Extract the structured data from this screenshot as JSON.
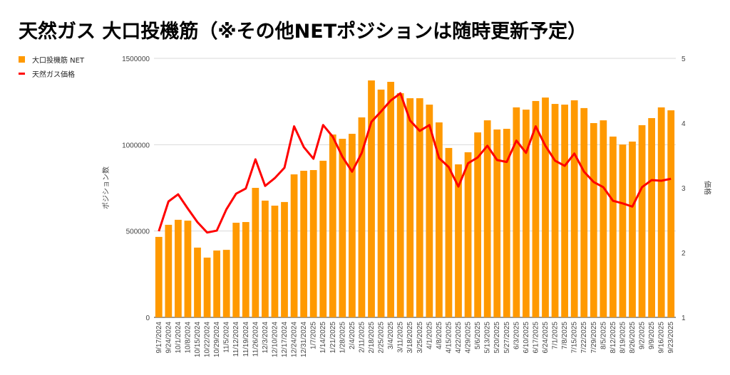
{
  "chart_data": {
    "type": "bar+line",
    "title": "天然ガス 大口投機筋（※その他NETポジションは随時更新予定）",
    "ylabel": "ポジション数",
    "y2label": "価格",
    "ylim": [
      0,
      1500000
    ],
    "y2lim": [
      1,
      5
    ],
    "yticks": [
      "0",
      "500000",
      "1000000",
      "1500000"
    ],
    "y2ticks": [
      "1",
      "2",
      "3",
      "4",
      "5"
    ],
    "grid": true,
    "legend_position": "top-left",
    "categories": [
      "9/17/2024",
      "9/24/2024",
      "10/1/2024",
      "10/8/2024",
      "10/15/2024",
      "10/22/2024",
      "10/29/2024",
      "11/5/2024",
      "11/12/2024",
      "11/19/2024",
      "11/26/2024",
      "12/3/2024",
      "12/10/2024",
      "12/17/2024",
      "12/24/2024",
      "12/31/2024",
      "1/7/2025",
      "1/14/2025",
      "1/21/2025",
      "1/28/2025",
      "2/4/2025",
      "2/11/2025",
      "2/18/2025",
      "2/25/2025",
      "3/4/2025",
      "3/11/2025",
      "3/18/2025",
      "3/25/2025",
      "4/1/2025",
      "4/8/2025",
      "4/15/2025",
      "4/22/2025",
      "4/29/2025",
      "5/6/2025",
      "5/13/2025",
      "5/20/2025",
      "5/27/2025",
      "6/3/2025",
      "6/10/2025",
      "6/17/2025",
      "6/24/2025",
      "7/1/2025",
      "7/8/2025",
      "7/15/2025",
      "7/22/2025",
      "7/29/2025",
      "8/5/2025",
      "8/12/2025",
      "8/19/2025",
      "8/26/2025",
      "9/2/2025",
      "9/9/2025",
      "9/16/2025",
      "9/23/2025"
    ],
    "series": [
      {
        "name": "大口投機筋  NET",
        "type": "bar",
        "axis": "left",
        "color": "#ff9900",
        "values": [
          466000,
          536000,
          565000,
          560000,
          404000,
          346000,
          387000,
          391000,
          548000,
          552000,
          750000,
          676000,
          647000,
          668000,
          828000,
          849000,
          853000,
          907000,
          1059000,
          1034000,
          1063000,
          1158000,
          1372000,
          1319000,
          1364000,
          1298000,
          1269000,
          1269000,
          1232000,
          1129000,
          981000,
          886000,
          956000,
          1071000,
          1141000,
          1088000,
          1092000,
          1216000,
          1203000,
          1253000,
          1273000,
          1236000,
          1232000,
          1257000,
          1212000,
          1125000,
          1141000,
          1047000,
          1001000,
          1018000,
          1113000,
          1154000,
          1216000,
          1199000
        ]
      },
      {
        "name": "天然ガス価格",
        "type": "line",
        "axis": "right",
        "color": "#ff0000",
        "values": [
          2.33,
          2.79,
          2.9,
          2.68,
          2.47,
          2.31,
          2.34,
          2.67,
          2.91,
          2.99,
          3.44,
          3.03,
          3.15,
          3.31,
          3.95,
          3.63,
          3.45,
          3.97,
          3.79,
          3.48,
          3.25,
          3.54,
          4.02,
          4.18,
          4.35,
          4.46,
          4.04,
          3.88,
          3.97,
          3.46,
          3.32,
          3.02,
          3.38,
          3.47,
          3.65,
          3.43,
          3.4,
          3.73,
          3.54,
          3.95,
          3.65,
          3.42,
          3.34,
          3.53,
          3.25,
          3.09,
          3.01,
          2.8,
          2.76,
          2.71,
          3.01,
          3.12,
          3.11,
          3.14
        ]
      }
    ]
  }
}
